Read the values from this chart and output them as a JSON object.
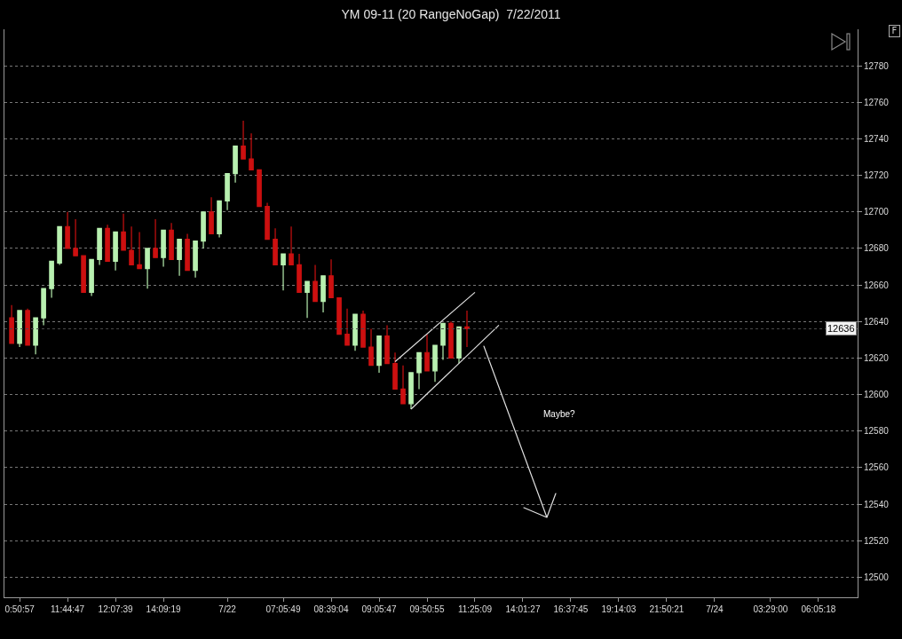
{
  "chart_data": {
    "type": "candlestick",
    "title": "YM 09-11 (20 RangeNoGap)  7/22/2011",
    "categories": [
      null,
      "0:50:57",
      null,
      null,
      null,
      null,
      null,
      "11:44:47",
      null,
      null,
      null,
      null,
      null,
      "12:07:39",
      null,
      null,
      null,
      null,
      null,
      "14:09:19",
      null,
      null,
      null,
      null,
      null,
      null,
      null,
      "7/22",
      null,
      null,
      null,
      null,
      null,
      null,
      "07:05:49",
      null,
      null,
      null,
      null,
      null,
      "08:39:04",
      null,
      null,
      null,
      null,
      null,
      "09:05:47",
      null,
      null,
      null,
      null,
      null,
      "09:50:55",
      null,
      null,
      null,
      null,
      null,
      "11:25:09",
      null,
      null,
      null,
      null,
      null,
      "14:01:27",
      null,
      null,
      null,
      null,
      null,
      "16:37:45",
      null,
      null,
      null,
      null,
      null,
      "19:14:03",
      null,
      null,
      null,
      null,
      null,
      "21:50:21",
      null,
      null,
      null,
      null,
      null,
      "7/24",
      null,
      null,
      null,
      null,
      null,
      null,
      "03:29:00",
      null,
      null,
      null,
      null,
      null,
      "06:05:18",
      null,
      null,
      null,
      null,
      null
    ],
    "ohlc": [
      [
        12642,
        12649,
        12628,
        12628
      ],
      [
        12628,
        12646,
        12626,
        12646
      ],
      [
        12646,
        12647,
        12627,
        12627
      ],
      [
        12627,
        12642,
        12622,
        12642
      ],
      [
        12642,
        12658,
        12638,
        12658
      ],
      [
        12658,
        12673,
        12653,
        12673
      ],
      [
        12672,
        12692,
        12671,
        12692
      ],
      [
        12692,
        12700,
        12680,
        12680
      ],
      [
        12680,
        12696,
        12676,
        12676
      ],
      [
        12676,
        12676,
        12656,
        12656
      ],
      [
        12656,
        12674,
        12654,
        12674
      ],
      [
        12674,
        12691,
        12671,
        12691
      ],
      [
        12691,
        12693,
        12673,
        12673
      ],
      [
        12673,
        12689,
        12668,
        12689
      ],
      [
        12689,
        12699,
        12679,
        12679
      ],
      [
        12679,
        12692,
        12671,
        12671
      ],
      [
        12671,
        12689,
        12669,
        12669
      ],
      [
        12669,
        12680,
        12658,
        12680
      ],
      [
        12680,
        12696,
        12675,
        12675
      ],
      [
        12675,
        12690,
        12670,
        12690
      ],
      [
        12690,
        12694,
        12674,
        12674
      ],
      [
        12674,
        12685,
        12665,
        12685
      ],
      [
        12685,
        12688,
        12668,
        12668
      ],
      [
        12668,
        12684,
        12664,
        12684
      ],
      [
        12684,
        12700,
        12680,
        12700
      ],
      [
        12700,
        12708,
        12688,
        12688
      ],
      [
        12688,
        12706,
        12686,
        12706
      ],
      [
        12706,
        12721,
        12701,
        12721
      ],
      [
        12721,
        12736,
        12716,
        12736
      ],
      [
        12736,
        12750,
        12729,
        12729
      ],
      [
        12729,
        12743,
        12723,
        12723
      ],
      [
        12723,
        12723,
        12703,
        12703
      ],
      [
        12703,
        12705,
        12685,
        12685
      ],
      [
        12685,
        12691,
        12671,
        12671
      ],
      [
        12671,
        12677,
        12657,
        12677
      ],
      [
        12677,
        12692,
        12671,
        12671
      ],
      [
        12671,
        12677,
        12656,
        12656
      ],
      [
        12656,
        12662,
        12642,
        12662
      ],
      [
        12662,
        12671,
        12651,
        12651
      ],
      [
        12651,
        12665,
        12645,
        12665
      ],
      [
        12665,
        12674,
        12653,
        12653
      ],
      [
        12653,
        12653,
        12633,
        12633
      ],
      [
        12633,
        12647,
        12627,
        12627
      ],
      [
        12627,
        12644,
        12624,
        12644
      ],
      [
        12644,
        12646,
        12626,
        12626
      ],
      [
        12626,
        12636,
        12616,
        12616
      ],
      [
        12616,
        12632,
        12612,
        12632
      ],
      [
        12632,
        12638,
        12617,
        12617
      ],
      [
        12617,
        12623,
        12603,
        12603
      ],
      [
        12603,
        12616,
        12595,
        12595
      ],
      [
        12595,
        12612,
        12592,
        12612
      ],
      [
        12612,
        12623,
        12603,
        12623
      ],
      [
        12623,
        12633,
        12613,
        12613
      ],
      [
        12613,
        12627,
        12607,
        12627
      ],
      [
        12627,
        12639,
        12619,
        12639
      ],
      [
        12639,
        12640,
        12620,
        12620
      ],
      [
        12620,
        12637,
        12617,
        12637
      ],
      [
        12637,
        12646,
        12626,
        12636
      ],
      null,
      null,
      null,
      null,
      null,
      null,
      null,
      null,
      null,
      null,
      null,
      null,
      null,
      null,
      null,
      null,
      null,
      null,
      null,
      null,
      null,
      null,
      null,
      null,
      null,
      null,
      null,
      null,
      null,
      null,
      null,
      null,
      null,
      null,
      null,
      null,
      null,
      null,
      null,
      null,
      null,
      null,
      null,
      null,
      null,
      null,
      null,
      null,
      null
    ],
    "colors": [
      "#cc1010",
      "#b8f0b0",
      "#cc1010",
      "#b8f0b0",
      "#b8f0b0",
      "#b8f0b0",
      "#b8f0b0",
      "#cc1010",
      "#cc1010",
      "#cc1010",
      "#b8f0b0",
      "#b8f0b0",
      "#cc1010",
      "#b8f0b0",
      "#cc1010",
      "#cc1010",
      "#cc1010",
      "#b8f0b0",
      "#cc1010",
      "#b8f0b0",
      "#cc1010",
      "#b8f0b0",
      "#cc1010",
      "#b8f0b0",
      "#b8f0b0",
      "#cc1010",
      "#b8f0b0",
      "#b8f0b0",
      "#b8f0b0",
      "#cc1010",
      "#cc1010",
      "#cc1010",
      "#cc1010",
      "#cc1010",
      "#b8f0b0",
      "#cc1010",
      "#cc1010",
      "#b8f0b0",
      "#cc1010",
      "#b8f0b0",
      "#cc1010",
      "#cc1010",
      "#cc1010",
      "#b8f0b0",
      "#cc1010",
      "#cc1010",
      "#b8f0b0",
      "#cc1010",
      "#cc1010",
      "#cc1010",
      "#b8f0b0",
      "#b8f0b0",
      "#cc1010",
      "#b8f0b0",
      "#b8f0b0",
      "#cc1010",
      "#b8f0b0",
      "#cc1010",
      null,
      null,
      null,
      null,
      null,
      null,
      null,
      null,
      null,
      null,
      null,
      null,
      null,
      null,
      null,
      null,
      null,
      null,
      null,
      null,
      null,
      null,
      null,
      null,
      null,
      null,
      null,
      null,
      null,
      null,
      null,
      null,
      null,
      null,
      null,
      null,
      null,
      null,
      null,
      null,
      null,
      null,
      null,
      null,
      null,
      null,
      null,
      null,
      null
    ],
    "series": [
      {
        "type": "line",
        "color": "#e0e0e0",
        "values": [
          null,
          null,
          null,
          null,
          null,
          null,
          null,
          null,
          null,
          null,
          null,
          null,
          null,
          null,
          null,
          null,
          null,
          null,
          null,
          null,
          null,
          null,
          null,
          null,
          null,
          null,
          null,
          null,
          null,
          null,
          null,
          null,
          null,
          null,
          null,
          null,
          null,
          null,
          null,
          null,
          null,
          null,
          null,
          null,
          null,
          null,
          null,
          null,
          12618,
          null,
          null,
          null,
          null,
          null,
          null,
          null,
          null,
          null,
          12656,
          null,
          null,
          null,
          null,
          null,
          null,
          null,
          null,
          null,
          null,
          null,
          null,
          null,
          null,
          null,
          null,
          null,
          null,
          null,
          null,
          null,
          null,
          null,
          null,
          null,
          null,
          null,
          null,
          null,
          null,
          null,
          null,
          null,
          null,
          null,
          null,
          null,
          null,
          null,
          null,
          null,
          null,
          null,
          null,
          null,
          null,
          null,
          null
        ]
      },
      {
        "type": "line",
        "color": "#e0e0e0",
        "values": [
          null,
          null,
          null,
          null,
          null,
          null,
          null,
          null,
          null,
          null,
          null,
          null,
          null,
          null,
          null,
          null,
          null,
          null,
          null,
          null,
          null,
          null,
          null,
          null,
          null,
          null,
          null,
          null,
          null,
          null,
          null,
          null,
          null,
          null,
          null,
          null,
          null,
          null,
          null,
          null,
          null,
          null,
          null,
          null,
          null,
          null,
          null,
          null,
          null,
          null,
          12592,
          null,
          null,
          null,
          null,
          null,
          null,
          null,
          null,
          null,
          null,
          12638,
          null,
          null,
          null,
          null,
          null,
          null,
          null,
          null,
          null,
          null,
          null,
          null,
          null,
          null,
          null,
          null,
          null,
          null,
          null,
          null,
          null,
          null,
          null,
          null,
          null,
          null,
          null,
          null,
          null,
          null,
          null,
          null,
          null,
          null,
          null,
          null,
          null,
          null,
          null,
          null,
          null,
          null,
          null,
          null,
          null
        ]
      }
    ],
    "ylim": [
      12489,
      12800
    ],
    "yticks": [
      12500,
      12520,
      12540,
      12560,
      12580,
      12600,
      12620,
      12640,
      12660,
      12680,
      12700,
      12720,
      12740,
      12760,
      12780
    ],
    "grid": "y",
    "ref_lines": [
      {
        "axis": "y",
        "value": 12636,
        "label": "12636"
      }
    ],
    "annotations": [
      "Maybe?",
      "F"
    ]
  }
}
